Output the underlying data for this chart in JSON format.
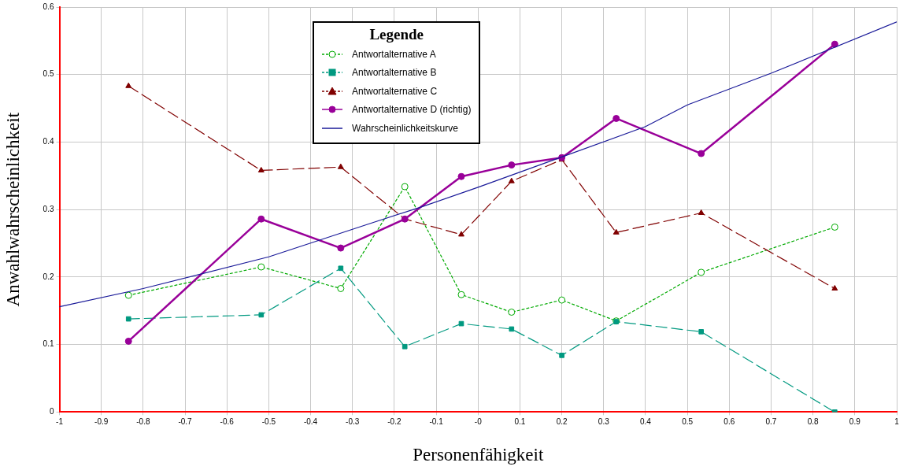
{
  "chart_data": {
    "type": "line",
    "xlabel": "Personenfähigkeit",
    "ylabel": "Anwahlwahrscheinlichkeit",
    "legend_title": "Legende",
    "legend": "top",
    "x": [
      -0.835,
      -0.518,
      -0.328,
      -0.175,
      -0.04,
      0.08,
      0.2,
      0.33,
      0.533,
      0.852
    ],
    "series": [
      {
        "name": "Antwortalternative A",
        "color": "#00aa00",
        "marker": "circle",
        "line_style": "dotted",
        "values": [
          0.173,
          0.215,
          0.183,
          0.334,
          0.174,
          0.148,
          0.166,
          0.135,
          0.207,
          0.274
        ]
      },
      {
        "name": "Antwortalternative B",
        "color": "#009980",
        "marker": "square",
        "line_style": "dashed",
        "values": [
          0.138,
          0.144,
          0.213,
          0.097,
          0.131,
          0.123,
          0.084,
          0.134,
          0.119,
          0
        ]
      },
      {
        "name": "Antwortalternative C",
        "color": "#800000",
        "marker": "triangle",
        "line_style": "dashed",
        "values": [
          0.483,
          0.358,
          0.363,
          0.286,
          0.263,
          0.342,
          0.374,
          0.266,
          0.295,
          0.183
        ]
      },
      {
        "name": "Antwortalternative D (richtig)",
        "color": "#990099",
        "marker": "circle",
        "line_style": "solid",
        "values": [
          0.105,
          0.286,
          0.243,
          0.286,
          0.349,
          0.366,
          0.377,
          0.435,
          0.383,
          0.545
        ]
      },
      {
        "name": "Wahrscheinlichkeitskurve",
        "color": "#1a1a99",
        "marker": "none",
        "line_style": "solid",
        "x": [
          -1,
          -0.8,
          -0.5,
          -0.26,
          -0.13,
          0,
          0.2,
          0.4,
          0.5,
          0.7,
          1
        ],
        "values": [
          0.156,
          0.183,
          0.23,
          0.279,
          0.305,
          0.333,
          0.378,
          0.423,
          0.455,
          0.502,
          0.578
        ]
      }
    ],
    "xlim": [
      -1,
      1
    ],
    "xticks": [
      -1,
      -0.9,
      -0.8,
      -0.7,
      -0.6,
      -0.5,
      -0.4,
      -0.3,
      -0.2,
      -0.1,
      {
        "value": 0,
        "label": "-0"
      },
      0.1,
      0.2,
      0.3,
      0.4,
      0.5,
      0.6,
      0.7,
      0.8,
      0.9,
      1
    ],
    "ylim": [
      0,
      0.6
    ],
    "yticks": [
      0,
      0.1,
      0.2,
      0.3,
      0.4,
      0.5,
      0.6
    ],
    "grid": true
  }
}
